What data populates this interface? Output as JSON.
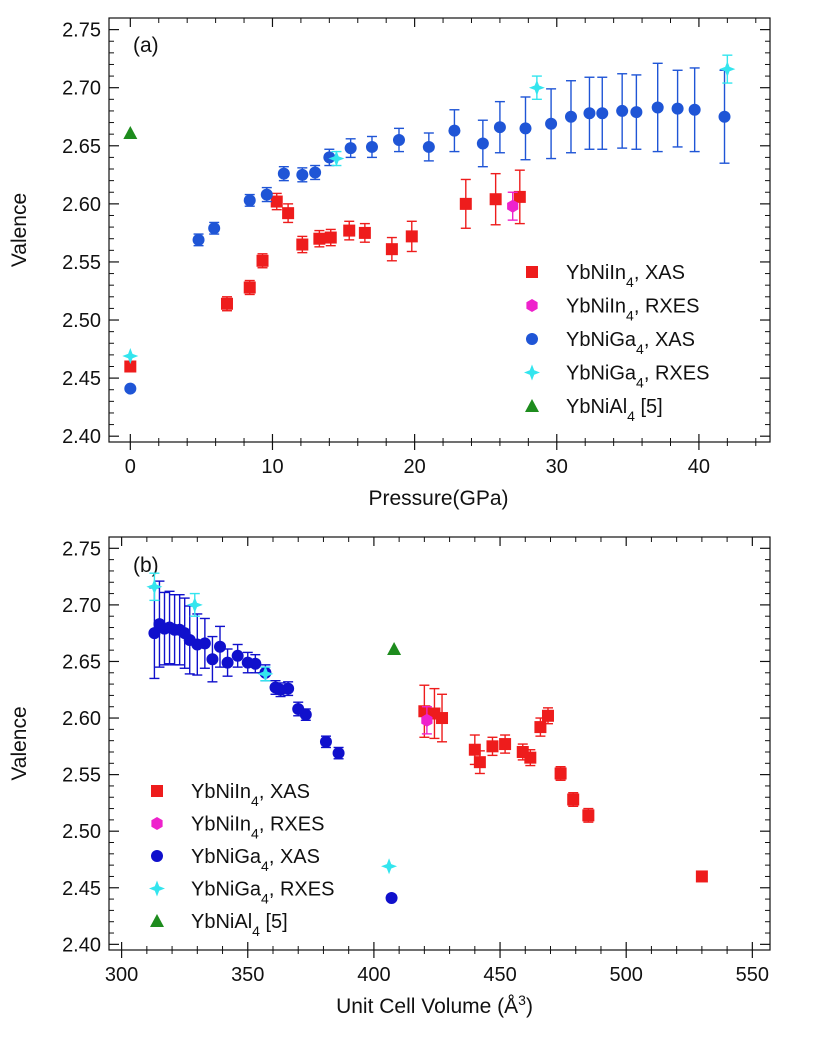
{
  "chart_data": [
    {
      "type": "scatter",
      "panel_label": "(a)",
      "xlabel": "Pressure(GPa)",
      "ylabel": "Valence",
      "xlim": [
        -1.5,
        45
      ],
      "ylim": [
        2.395,
        2.76
      ],
      "x_ticks": [
        0,
        10,
        20,
        30,
        40
      ],
      "y_ticks": [
        2.4,
        2.45,
        2.5,
        2.55,
        2.6,
        2.65,
        2.7,
        2.75
      ],
      "legend_position": "bottom-right",
      "series": [
        {
          "name": "YbNiIn",
          "sub": "4",
          "suffix": ", XAS",
          "color": "#ee1c1c",
          "marker": "square",
          "points": [
            {
              "x": 0,
              "y": 2.46,
              "err": 0
            },
            {
              "x": 6.8,
              "y": 2.514,
              "err": 0.006
            },
            {
              "x": 8.4,
              "y": 2.528,
              "err": 0.006
            },
            {
              "x": 9.3,
              "y": 2.551,
              "err": 0.006
            },
            {
              "x": 10.3,
              "y": 2.602,
              "err": 0.007
            },
            {
              "x": 11.1,
              "y": 2.592,
              "err": 0.008
            },
            {
              "x": 12.1,
              "y": 2.565,
              "err": 0.007
            },
            {
              "x": 13.3,
              "y": 2.57,
              "err": 0.007
            },
            {
              "x": 14.1,
              "y": 2.571,
              "err": 0.007
            },
            {
              "x": 15.4,
              "y": 2.577,
              "err": 0.008
            },
            {
              "x": 16.5,
              "y": 2.575,
              "err": 0.008
            },
            {
              "x": 18.4,
              "y": 2.561,
              "err": 0.01
            },
            {
              "x": 19.8,
              "y": 2.572,
              "err": 0.013
            },
            {
              "x": 23.6,
              "y": 2.6,
              "err": 0.021
            },
            {
              "x": 25.7,
              "y": 2.604,
              "err": 0.022
            },
            {
              "x": 27.4,
              "y": 2.606,
              "err": 0.023
            }
          ]
        },
        {
          "name": "YbNiIn",
          "sub": "4",
          "suffix": ", RXES",
          "color": "#ee22cc",
          "marker": "hexagon",
          "points": [
            {
              "x": 26.9,
              "y": 2.598,
              "err": 0.012
            }
          ]
        },
        {
          "name": "YbNiGa",
          "sub": "4",
          "suffix": ", XAS",
          "color": "#1f55d6",
          "marker": "circle",
          "points": [
            {
              "x": 0,
              "y": 2.441,
              "err": 0
            },
            {
              "x": 4.8,
              "y": 2.569,
              "err": 0.005
            },
            {
              "x": 5.9,
              "y": 2.579,
              "err": 0.005
            },
            {
              "x": 8.4,
              "y": 2.603,
              "err": 0.005
            },
            {
              "x": 9.6,
              "y": 2.608,
              "err": 0.006
            },
            {
              "x": 10.8,
              "y": 2.626,
              "err": 0.006
            },
            {
              "x": 12.1,
              "y": 2.625,
              "err": 0.006
            },
            {
              "x": 13.0,
              "y": 2.627,
              "err": 0.006
            },
            {
              "x": 14.0,
              "y": 2.64,
              "err": 0.007
            },
            {
              "x": 15.5,
              "y": 2.648,
              "err": 0.008
            },
            {
              "x": 17.0,
              "y": 2.649,
              "err": 0.009
            },
            {
              "x": 18.9,
              "y": 2.655,
              "err": 0.01
            },
            {
              "x": 21.0,
              "y": 2.649,
              "err": 0.012
            },
            {
              "x": 22.8,
              "y": 2.663,
              "err": 0.018
            },
            {
              "x": 24.8,
              "y": 2.652,
              "err": 0.02
            },
            {
              "x": 26.0,
              "y": 2.666,
              "err": 0.022
            },
            {
              "x": 27.8,
              "y": 2.665,
              "err": 0.027
            },
            {
              "x": 29.6,
              "y": 2.669,
              "err": 0.03
            },
            {
              "x": 31.0,
              "y": 2.675,
              "err": 0.031
            },
            {
              "x": 32.3,
              "y": 2.678,
              "err": 0.031
            },
            {
              "x": 33.2,
              "y": 2.678,
              "err": 0.031
            },
            {
              "x": 34.6,
              "y": 2.68,
              "err": 0.032
            },
            {
              "x": 35.6,
              "y": 2.679,
              "err": 0.032
            },
            {
              "x": 37.1,
              "y": 2.683,
              "err": 0.038
            },
            {
              "x": 38.5,
              "y": 2.682,
              "err": 0.033
            },
            {
              "x": 39.7,
              "y": 2.681,
              "err": 0.036
            },
            {
              "x": 41.8,
              "y": 2.675,
              "err": 0.04
            }
          ]
        },
        {
          "name": "YbNiGa",
          "sub": "4",
          "suffix": ", RXES",
          "color": "#33e5ee",
          "marker": "star4",
          "points": [
            {
              "x": 0,
              "y": 2.469,
              "err": 0
            },
            {
              "x": 14.5,
              "y": 2.639,
              "err": 0.006
            },
            {
              "x": 28.6,
              "y": 2.7,
              "err": 0.01
            },
            {
              "x": 42.0,
              "y": 2.716,
              "err": 0.012
            }
          ]
        },
        {
          "name": "YbNiAl",
          "sub": "4",
          "suffix": " [5]",
          "color": "#1e8c1e",
          "marker": "triangle",
          "points": [
            {
              "x": 0,
              "y": 2.661,
              "err": 0
            }
          ]
        }
      ]
    },
    {
      "type": "scatter",
      "panel_label": "(b)",
      "xlabel": "Unit Cell Volume (Å",
      "xlabel_sup": "3",
      "xlabel_end": ")",
      "ylabel": "Valence",
      "xlim": [
        295,
        557
      ],
      "ylim": [
        2.395,
        2.76
      ],
      "x_ticks": [
        300,
        350,
        400,
        450,
        500,
        550
      ],
      "y_ticks": [
        2.4,
        2.45,
        2.5,
        2.55,
        2.6,
        2.65,
        2.7,
        2.75
      ],
      "legend_position": "bottom-left",
      "series": [
        {
          "name": "YbNiIn",
          "sub": "4",
          "suffix": ", XAS",
          "color": "#ee1c1c",
          "marker": "square",
          "points": [
            {
              "x": 530,
              "y": 2.46,
              "err": 0
            },
            {
              "x": 485,
              "y": 2.514,
              "err": 0.006
            },
            {
              "x": 479,
              "y": 2.528,
              "err": 0.006
            },
            {
              "x": 474,
              "y": 2.551,
              "err": 0.006
            },
            {
              "x": 469,
              "y": 2.602,
              "err": 0.007
            },
            {
              "x": 466,
              "y": 2.592,
              "err": 0.008
            },
            {
              "x": 462,
              "y": 2.565,
              "err": 0.007
            },
            {
              "x": 459,
              "y": 2.57,
              "err": 0.007
            },
            {
              "x": 452,
              "y": 2.577,
              "err": 0.008
            },
            {
              "x": 447,
              "y": 2.575,
              "err": 0.008
            },
            {
              "x": 442,
              "y": 2.561,
              "err": 0.01
            },
            {
              "x": 440,
              "y": 2.572,
              "err": 0.013
            },
            {
              "x": 427,
              "y": 2.6,
              "err": 0.021
            },
            {
              "x": 424,
              "y": 2.604,
              "err": 0.022
            },
            {
              "x": 420,
              "y": 2.606,
              "err": 0.023
            }
          ]
        },
        {
          "name": "YbNiIn",
          "sub": "4",
          "suffix": ", RXES",
          "color": "#ee22cc",
          "marker": "hexagon",
          "points": [
            {
              "x": 421,
              "y": 2.598,
              "err": 0.012
            }
          ]
        },
        {
          "name": "YbNiGa",
          "sub": "4",
          "suffix": ", XAS",
          "color": "#1010cc",
          "marker": "circle",
          "points": [
            {
              "x": 407,
              "y": 2.441,
              "err": 0
            },
            {
              "x": 386,
              "y": 2.569,
              "err": 0.005
            },
            {
              "x": 381,
              "y": 2.579,
              "err": 0.005
            },
            {
              "x": 373,
              "y": 2.603,
              "err": 0.005
            },
            {
              "x": 370,
              "y": 2.608,
              "err": 0.006
            },
            {
              "x": 366,
              "y": 2.626,
              "err": 0.006
            },
            {
              "x": 363,
              "y": 2.625,
              "err": 0.006
            },
            {
              "x": 361,
              "y": 2.627,
              "err": 0.006
            },
            {
              "x": 357,
              "y": 2.64,
              "err": 0.007
            },
            {
              "x": 353,
              "y": 2.648,
              "err": 0.008
            },
            {
              "x": 350,
              "y": 2.649,
              "err": 0.009
            },
            {
              "x": 346,
              "y": 2.655,
              "err": 0.01
            },
            {
              "x": 342,
              "y": 2.649,
              "err": 0.012
            },
            {
              "x": 339,
              "y": 2.663,
              "err": 0.018
            },
            {
              "x": 336,
              "y": 2.652,
              "err": 0.02
            },
            {
              "x": 333,
              "y": 2.666,
              "err": 0.022
            },
            {
              "x": 330,
              "y": 2.665,
              "err": 0.027
            },
            {
              "x": 327,
              "y": 2.669,
              "err": 0.03
            },
            {
              "x": 325,
              "y": 2.675,
              "err": 0.031
            },
            {
              "x": 323,
              "y": 2.678,
              "err": 0.031
            },
            {
              "x": 321,
              "y": 2.678,
              "err": 0.031
            },
            {
              "x": 319,
              "y": 2.68,
              "err": 0.032
            },
            {
              "x": 317,
              "y": 2.679,
              "err": 0.032
            },
            {
              "x": 315,
              "y": 2.683,
              "err": 0.038
            },
            {
              "x": 313,
              "y": 2.675,
              "err": 0.04
            }
          ]
        },
        {
          "name": "YbNiGa",
          "sub": "4",
          "suffix": ", RXES",
          "color": "#33e5ee",
          "marker": "star4",
          "points": [
            {
              "x": 406,
              "y": 2.469,
              "err": 0
            },
            {
              "x": 357,
              "y": 2.639,
              "err": 0.006
            },
            {
              "x": 329,
              "y": 2.7,
              "err": 0.01
            },
            {
              "x": 313,
              "y": 2.716,
              "err": 0.012
            }
          ]
        },
        {
          "name": "YbNiAl",
          "sub": "4",
          "suffix": " [5]",
          "color": "#1e8c1e",
          "marker": "triangle",
          "points": [
            {
              "x": 408,
              "y": 2.661,
              "err": 0
            }
          ]
        }
      ]
    }
  ]
}
